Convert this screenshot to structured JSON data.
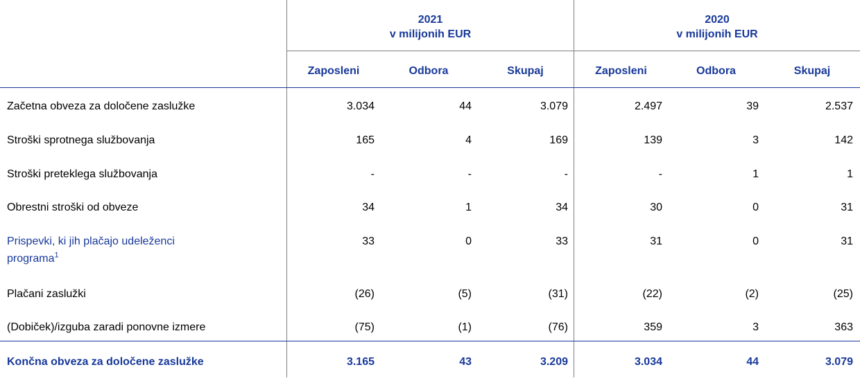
{
  "years": [
    {
      "year": "2021",
      "unit": "v milijonih EUR"
    },
    {
      "year": "2020",
      "unit": "v milijonih EUR"
    }
  ],
  "columns": [
    "Zaposleni",
    "Odbora",
    "Skupaj",
    "Zaposleni",
    "Odbora",
    "Skupaj"
  ],
  "rows": [
    {
      "label": "Začetna obveza za določene zaslužke",
      "values": [
        "3.034",
        "44",
        "3.079",
        "2.497",
        "39",
        "2.537"
      ]
    },
    {
      "label": "Stroški sprotnega službovanja",
      "values": [
        "165",
        "4",
        "169",
        "139",
        "3",
        "142"
      ]
    },
    {
      "label": "Stroški preteklega službovanja",
      "values": [
        "-",
        "-",
        "-",
        "-",
        "1",
        "1"
      ]
    },
    {
      "label": "Obrestni stroški od obveze",
      "values": [
        "34",
        "1",
        "34",
        "30",
        "0",
        "31"
      ]
    },
    {
      "label_line1": "Prispevki, ki jih plačajo udeleženci",
      "label_line2": "programa",
      "footnote": "1",
      "values": [
        "33",
        "0",
        "33",
        "31",
        "0",
        "31"
      ]
    },
    {
      "label": "Plačani zaslužki",
      "values": [
        "(26)",
        "(5)",
        "(31)",
        "(22)",
        "(2)",
        "(25)"
      ]
    },
    {
      "label": "(Dobiček)/izguba zaradi ponovne izmere",
      "values": [
        "(75)",
        "(1)",
        "(76)",
        "359",
        "3",
        "363"
      ]
    }
  ],
  "total": {
    "label": "Končna obveza za določene zaslužke",
    "values": [
      "3.165",
      "43",
      "3.209",
      "3.034",
      "44",
      "3.079"
    ]
  }
}
